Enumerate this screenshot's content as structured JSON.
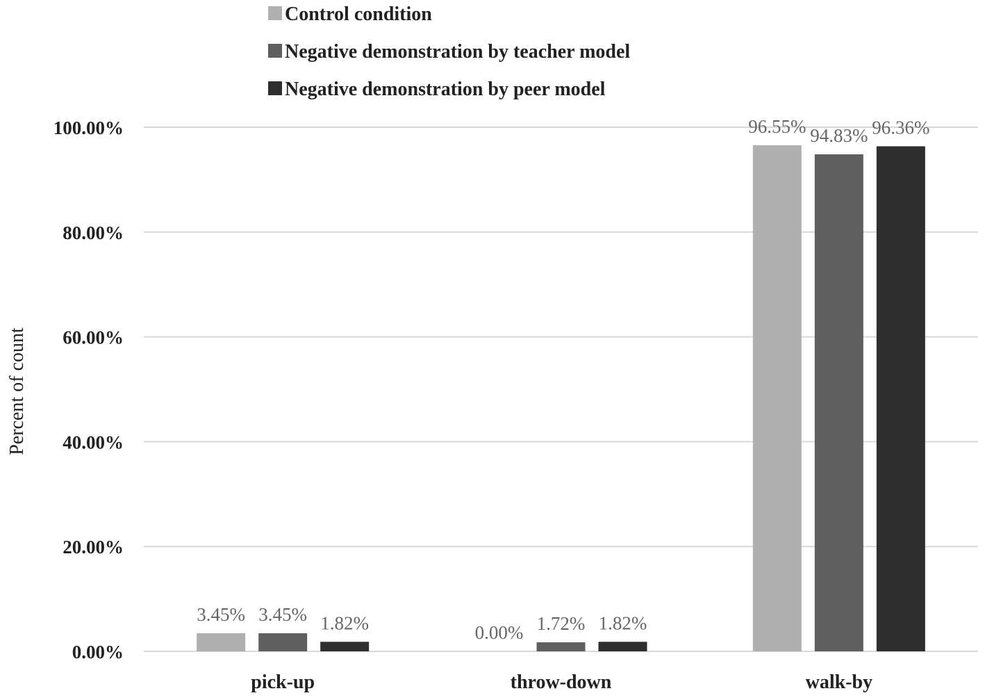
{
  "chart_data": {
    "type": "bar",
    "categories": [
      "pick-up",
      "throw-down",
      "walk-by"
    ],
    "series": [
      {
        "name": "Control condition",
        "color": "#b0b0b0",
        "values": [
          3.45,
          0.0,
          96.55
        ],
        "labels": [
          "3.45%",
          "0.00%",
          "96.55%"
        ]
      },
      {
        "name": "Negative demonstration by teacher model",
        "color": "#5f5f5f",
        "values": [
          3.45,
          1.72,
          94.83
        ],
        "labels": [
          "3.45%",
          "1.72%",
          "94.83%"
        ]
      },
      {
        "name": "Negative demonstration by peer model",
        "color": "#2e2e2e",
        "values": [
          1.82,
          1.82,
          96.36
        ],
        "labels": [
          "1.82%",
          "1.82%",
          "96.36%"
        ]
      }
    ],
    "ylabel": "Percent of count",
    "xlabel": "",
    "ylim": [
      0,
      100
    ],
    "yticks": [
      "0.00%",
      "20.00%",
      "40.00%",
      "60.00%",
      "80.00%",
      "100.00%"
    ],
    "grid": true,
    "legend_position": "top-center"
  }
}
